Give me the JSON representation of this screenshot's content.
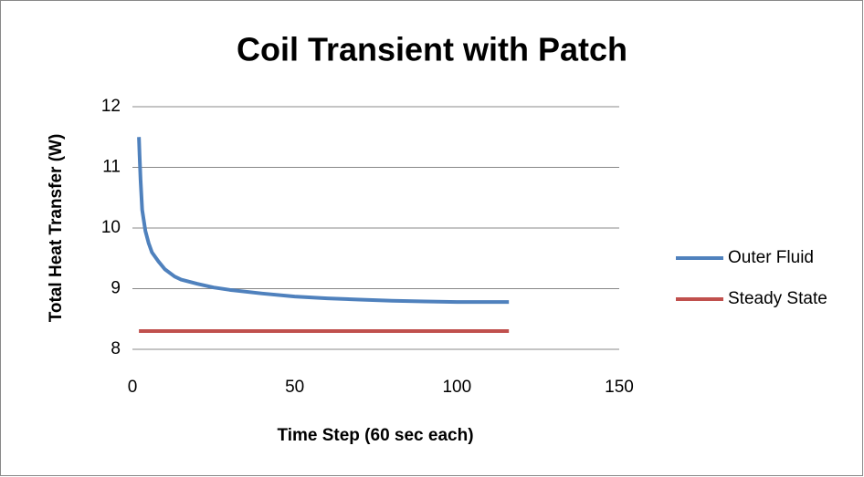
{
  "chart_data": {
    "type": "line",
    "title": "Coil Transient with Patch",
    "x_label": "Time Step (60 sec each)",
    "y_label": "Total Heat Transfer (W)",
    "series": [
      {
        "name": "Outer Fluid",
        "color": "#4f81bd",
        "x": [
          2,
          2.2,
          2.5,
          3,
          4,
          5,
          6,
          8,
          10,
          13,
          15,
          20,
          25,
          30,
          40,
          50,
          60,
          70,
          80,
          90,
          100,
          116
        ],
        "values": [
          11.5,
          11.2,
          10.8,
          10.3,
          9.95,
          9.75,
          9.6,
          9.45,
          9.32,
          9.2,
          9.15,
          9.08,
          9.02,
          8.98,
          8.92,
          8.87,
          8.84,
          8.82,
          8.8,
          8.79,
          8.78,
          8.78
        ]
      },
      {
        "name": "Steady State",
        "color": "#c0504d",
        "x": [
          2,
          116
        ],
        "values": [
          8.3,
          8.3
        ]
      }
    ],
    "xlim": [
      0,
      150
    ],
    "xticks": [
      0,
      50,
      100,
      150
    ],
    "ylim": [
      8,
      12
    ],
    "yticks": [
      8,
      9,
      10,
      11,
      12
    ],
    "grid": true,
    "legend": "right"
  }
}
